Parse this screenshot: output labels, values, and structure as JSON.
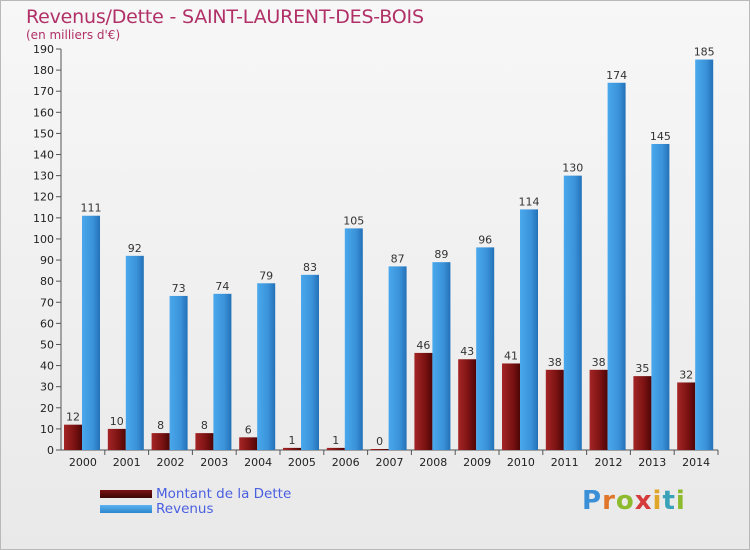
{
  "header": {
    "title": "Revenus/Dette - SAINT-LAURENT-DES-BOIS",
    "subtitle": "(en milliers d'€)"
  },
  "logo": {
    "text": "Proxiti"
  },
  "colors": {
    "debt": "#8b1a1a",
    "debt_dark": "#4a0808",
    "revenue": "#3d9ae0",
    "revenue_dark": "#1f6fb8",
    "title": "#b03067",
    "legend_text": "#4a5fe0"
  },
  "legend": {
    "debt_label": "Montant de la Dette",
    "revenue_label": "Revenus"
  },
  "chart_data": {
    "type": "bar",
    "title": "Revenus/Dette - SAINT-LAURENT-DES-BOIS",
    "subtitle": "(en milliers d'€)",
    "categories": [
      "2000",
      "2001",
      "2002",
      "2003",
      "2004",
      "2005",
      "2006",
      "2007",
      "2008",
      "2009",
      "2010",
      "2011",
      "2012",
      "2013",
      "2014"
    ],
    "series": [
      {
        "name": "Montant de la Dette",
        "values": [
          12,
          10,
          8,
          8,
          6,
          1,
          1,
          0,
          46,
          43,
          41,
          38,
          38,
          35,
          32
        ]
      },
      {
        "name": "Revenus",
        "values": [
          111,
          92,
          73,
          74,
          79,
          83,
          105,
          87,
          89,
          96,
          114,
          130,
          174,
          145,
          185
        ]
      }
    ],
    "ylim": [
      0,
      190
    ],
    "yticks": [
      0,
      10,
      20,
      30,
      40,
      50,
      60,
      70,
      80,
      90,
      100,
      110,
      120,
      130,
      140,
      150,
      160,
      170,
      180,
      190
    ],
    "grid": false,
    "legend_position": "bottom-left"
  }
}
